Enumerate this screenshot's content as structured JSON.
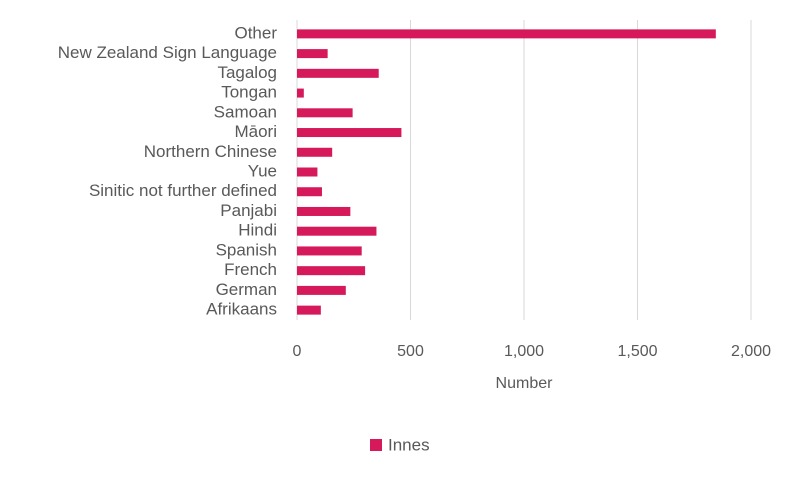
{
  "chart_data": {
    "type": "bar",
    "categories": [
      "Other",
      "New Zealand Sign Language",
      "Tagalog",
      "Tongan",
      "Samoan",
      "Māori",
      "Northern Chinese",
      "Yue",
      "Sinitic not further defined",
      "Panjabi",
      "Hindi",
      "Spanish",
      "French",
      "German",
      "Afrikaans"
    ],
    "series": [
      {
        "name": "Innes",
        "color": "#d6195a",
        "values": [
          1845,
          135,
          360,
          30,
          245,
          460,
          155,
          90,
          110,
          235,
          350,
          285,
          300,
          215,
          105
        ]
      }
    ],
    "x_label": "Number",
    "xlim": [
      0,
      2000
    ],
    "xticks": [
      0,
      500,
      {
        "value": 1000,
        "label": "1,000"
      },
      {
        "value": 1500,
        "label": "1,500"
      },
      {
        "value": 2000,
        "label": "2,000"
      }
    ],
    "grid": true,
    "legend": "bottom"
  }
}
